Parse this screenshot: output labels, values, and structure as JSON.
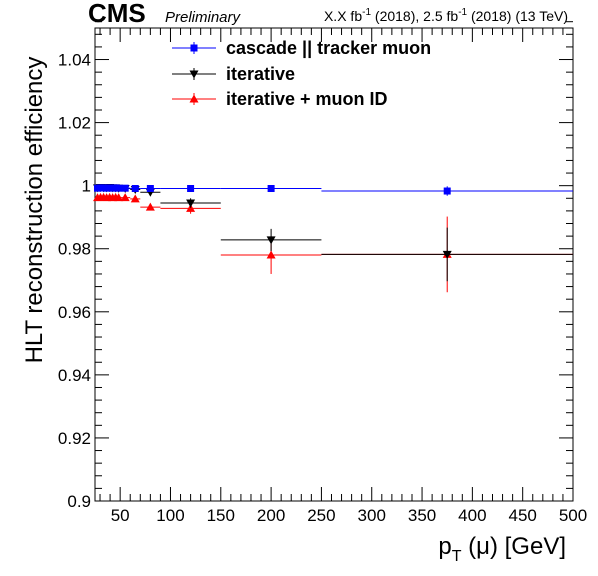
{
  "header": {
    "cms_label": "CMS",
    "preliminary_label": "Preliminary",
    "lumi_part1": "X.X fb",
    "lumi_exp1": "-1",
    "lumi_part2": " (2018), 2.5 fb",
    "lumi_exp2": "-1",
    "lumi_part3": " (2018) (13 TeV)"
  },
  "chart_data": {
    "type": "scatter",
    "xlabel_main": "p",
    "xlabel_sub": "T",
    "xlabel_rest": " (μ) [GeV]",
    "ylabel": "HLT reconstruction efficiency",
    "xlim": [
      25,
      500
    ],
    "ylim": [
      0.9,
      1.05
    ],
    "x_ticks": [
      50,
      100,
      150,
      200,
      250,
      300,
      350,
      400,
      450,
      500
    ],
    "y_ticks": [
      0.9,
      0.92,
      0.94,
      0.96,
      0.98,
      1.0,
      1.02,
      1.04
    ],
    "y_tick_labels": [
      "0.9",
      "0.92",
      "0.94",
      "0.96",
      "0.98",
      "1",
      "1.02",
      "1.04"
    ],
    "grid": false,
    "legend_position": "top",
    "series": [
      {
        "name": "cascade || tracker muon",
        "color": "#0000ff",
        "marker": "square",
        "points": [
          {
            "x": 27.5,
            "xlo": 26,
            "xhi": 29,
            "y": 0.9992,
            "err": 0.0003
          },
          {
            "x": 30.5,
            "xlo": 29,
            "xhi": 32,
            "y": 0.9993,
            "err": 0.0003
          },
          {
            "x": 33.5,
            "xlo": 32,
            "xhi": 35,
            "y": 0.9993,
            "err": 0.0003
          },
          {
            "x": 36.5,
            "xlo": 35,
            "xhi": 38,
            "y": 0.9992,
            "err": 0.0003
          },
          {
            "x": 39.5,
            "xlo": 38,
            "xhi": 41,
            "y": 0.9993,
            "err": 0.0003
          },
          {
            "x": 42.5,
            "xlo": 41,
            "xhi": 44,
            "y": 0.9992,
            "err": 0.0003
          },
          {
            "x": 45.5,
            "xlo": 44,
            "xhi": 47,
            "y": 0.9993,
            "err": 0.0003
          },
          {
            "x": 48.5,
            "xlo": 47,
            "xhi": 50,
            "y": 0.9992,
            "err": 0.0003
          },
          {
            "x": 55,
            "xlo": 50,
            "xhi": 60,
            "y": 0.9992,
            "err": 0.0003
          },
          {
            "x": 65,
            "xlo": 60,
            "xhi": 70,
            "y": 0.9991,
            "err": 0.0004
          },
          {
            "x": 80,
            "xlo": 70,
            "xhi": 90,
            "y": 0.9991,
            "err": 0.0004
          },
          {
            "x": 120,
            "xlo": 90,
            "xhi": 150,
            "y": 0.9991,
            "err": 0.0005
          },
          {
            "x": 200,
            "xlo": 150,
            "xhi": 250,
            "y": 0.9991,
            "err": 0.0006
          },
          {
            "x": 375,
            "xlo": 250,
            "xhi": 500,
            "y": 0.9983,
            "err": 0.0015
          }
        ]
      },
      {
        "name": "iterative",
        "color": "#000000",
        "marker": "triangle-down",
        "points": [
          {
            "x": 27.5,
            "xlo": 26,
            "xhi": 29,
            "y": 0.9993,
            "err": 0.0003
          },
          {
            "x": 30.5,
            "xlo": 29,
            "xhi": 32,
            "y": 0.9994,
            "err": 0.0003
          },
          {
            "x": 33.5,
            "xlo": 32,
            "xhi": 35,
            "y": 0.9993,
            "err": 0.0003
          },
          {
            "x": 36.5,
            "xlo": 35,
            "xhi": 38,
            "y": 0.9993,
            "err": 0.0003
          },
          {
            "x": 39.5,
            "xlo": 38,
            "xhi": 41,
            "y": 0.9994,
            "err": 0.0003
          },
          {
            "x": 42.5,
            "xlo": 41,
            "xhi": 44,
            "y": 0.9993,
            "err": 0.0003
          },
          {
            "x": 45.5,
            "xlo": 44,
            "xhi": 47,
            "y": 0.9993,
            "err": 0.0003
          },
          {
            "x": 48.5,
            "xlo": 47,
            "xhi": 50,
            "y": 0.9992,
            "err": 0.0003
          },
          {
            "x": 55,
            "xlo": 50,
            "xhi": 60,
            "y": 0.9991,
            "err": 0.0004
          },
          {
            "x": 65,
            "xlo": 60,
            "xhi": 70,
            "y": 0.9988,
            "err": 0.0005
          },
          {
            "x": 80,
            "xlo": 70,
            "xhi": 90,
            "y": 0.9979,
            "err": 0.0008
          },
          {
            "x": 120,
            "xlo": 90,
            "xhi": 150,
            "y": 0.9945,
            "err": 0.0015
          },
          {
            "x": 200,
            "xlo": 150,
            "xhi": 250,
            "y": 0.9828,
            "err": 0.0035
          },
          {
            "x": 375,
            "xlo": 250,
            "xhi": 500,
            "y": 0.9782,
            "err": 0.0085
          }
        ]
      },
      {
        "name": "iterative + muon ID",
        "color": "#ff0000",
        "marker": "triangle-up",
        "points": [
          {
            "x": 27.5,
            "xlo": 26,
            "xhi": 29,
            "y": 0.9962,
            "err": 0.0004
          },
          {
            "x": 30.5,
            "xlo": 29,
            "xhi": 32,
            "y": 0.9963,
            "err": 0.0004
          },
          {
            "x": 33.5,
            "xlo": 32,
            "xhi": 35,
            "y": 0.9963,
            "err": 0.0004
          },
          {
            "x": 36.5,
            "xlo": 35,
            "xhi": 38,
            "y": 0.9962,
            "err": 0.0004
          },
          {
            "x": 39.5,
            "xlo": 38,
            "xhi": 41,
            "y": 0.9963,
            "err": 0.0004
          },
          {
            "x": 42.5,
            "xlo": 41,
            "xhi": 44,
            "y": 0.9962,
            "err": 0.0004
          },
          {
            "x": 45.5,
            "xlo": 44,
            "xhi": 47,
            "y": 0.9963,
            "err": 0.0004
          },
          {
            "x": 48.5,
            "xlo": 47,
            "xhi": 50,
            "y": 0.9962,
            "err": 0.0004
          },
          {
            "x": 55,
            "xlo": 50,
            "xhi": 60,
            "y": 0.9962,
            "err": 0.0005
          },
          {
            "x": 65,
            "xlo": 60,
            "xhi": 70,
            "y": 0.9958,
            "err": 0.0006
          },
          {
            "x": 80,
            "xlo": 70,
            "xhi": 90,
            "y": 0.9932,
            "err": 0.001
          },
          {
            "x": 120,
            "xlo": 90,
            "xhi": 150,
            "y": 0.9928,
            "err": 0.0017
          },
          {
            "x": 200,
            "xlo": 150,
            "xhi": 250,
            "y": 0.978,
            "err": 0.006
          },
          {
            "x": 375,
            "xlo": 250,
            "xhi": 500,
            "y": 0.9782,
            "err": 0.012
          }
        ]
      }
    ]
  }
}
